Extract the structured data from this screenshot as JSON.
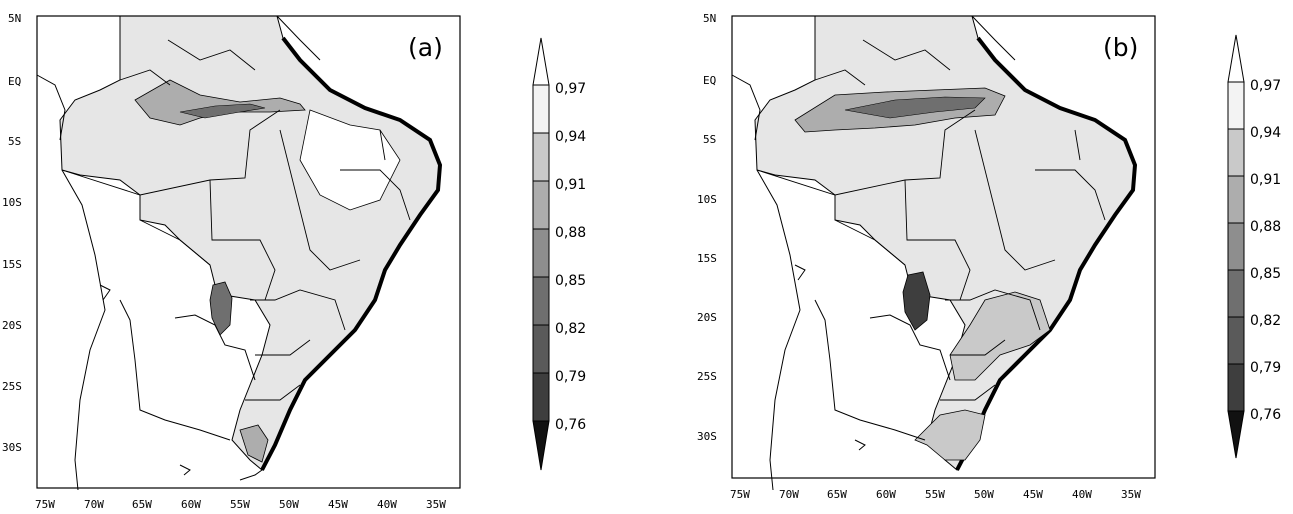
{
  "panels": [
    {
      "label": "(a)",
      "lat_ticks": [
        "5N",
        "EQ",
        "5S",
        "10S",
        "15S",
        "20S",
        "25S",
        "30S"
      ],
      "lon_ticks": [
        "75W",
        "70W",
        "65W",
        "60W",
        "55W",
        "50W",
        "45W",
        "40W",
        "35W"
      ],
      "colorbar": [
        "0,97",
        "0,94",
        "0,91",
        "0,88",
        "0,85",
        "0,82",
        "0,79",
        "0,76"
      ]
    },
    {
      "label": "(b)",
      "lat_ticks": [
        "5N",
        "EQ",
        "5S",
        "10S",
        "15S",
        "20S",
        "25S",
        "30S"
      ],
      "lon_ticks": [
        "75W",
        "70W",
        "65W",
        "60W",
        "55W",
        "50W",
        "45W",
        "40W",
        "35W"
      ],
      "colorbar": [
        "0,97",
        "0,94",
        "0,91",
        "0,88",
        "0,85",
        "0,82",
        "0,79",
        "0,76"
      ]
    }
  ],
  "colors": {
    "scale": [
      "#f3f3f3",
      "#e6e6e6",
      "#c9c9c9",
      "#adadad",
      "#8e8e8e",
      "#6f6f6f",
      "#4e4e4e",
      "#2e2e2e",
      "#111111"
    ],
    "land_fill": "#e6e6e6",
    "outline": "#000000"
  }
}
